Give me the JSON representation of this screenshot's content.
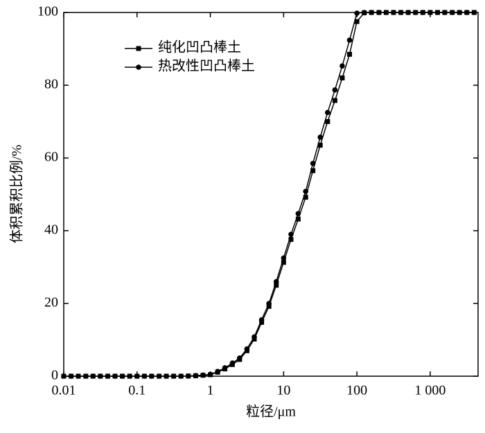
{
  "chart_data": {
    "type": "line",
    "xlabel": "粒径/μm",
    "ylabel": "体积累积比例/%",
    "xscale": "log",
    "xlim": [
      0.01,
      4500
    ],
    "ylim": [
      0,
      100
    ],
    "xticks": [
      0.01,
      0.1,
      1,
      10,
      100,
      {
        "value": 1000,
        "label": "1 000"
      }
    ],
    "yticks": [
      0,
      20,
      40,
      60,
      80,
      100
    ],
    "legend": "upper left",
    "x": [
      0.01,
      0.0126,
      0.0158,
      0.02,
      0.0251,
      0.0316,
      0.0398,
      0.0501,
      0.0631,
      0.0794,
      0.1,
      0.126,
      0.158,
      0.2,
      0.251,
      0.316,
      0.398,
      0.501,
      0.631,
      0.794,
      1,
      1.26,
      1.58,
      2,
      2.51,
      3.16,
      3.98,
      5.01,
      6.31,
      7.94,
      10,
      12.6,
      15.8,
      20,
      25.1,
      31.6,
      39.8,
      50.1,
      63.1,
      79.4,
      100,
      126,
      158,
      200,
      251,
      316,
      398,
      501,
      631,
      794,
      1000,
      1260,
      1580,
      2000,
      2510,
      3160,
      3980
    ],
    "series": [
      {
        "name": "纯化凹凸棒土",
        "color": "#000000",
        "marker": "square",
        "values": [
          0,
          0,
          0,
          0,
          0,
          0,
          0,
          0,
          0,
          0,
          0,
          0,
          0,
          0,
          0,
          0,
          0,
          0.04,
          0.12,
          0.25,
          0.4,
          1.1,
          2.0,
          3.2,
          4.6,
          7.0,
          10.2,
          14.8,
          19.2,
          25,
          31.3,
          37.6,
          43.2,
          49.2,
          56.5,
          63.5,
          70,
          75.8,
          82,
          88.5,
          97.5,
          99.9,
          100,
          100,
          100,
          100,
          100,
          100,
          100,
          100,
          100,
          100,
          100,
          100,
          100,
          100,
          100
        ]
      },
      {
        "name": "热改性凹凸棒土",
        "color": "#000000",
        "marker": "circle",
        "values": [
          0,
          0,
          0,
          0,
          0,
          0,
          0,
          0,
          0,
          0,
          0,
          0,
          0,
          0,
          0,
          0,
          0,
          0.05,
          0.15,
          0.3,
          0.5,
          1.3,
          2.3,
          3.6,
          5.0,
          7.5,
          10.8,
          15.5,
          20,
          26,
          32.5,
          39,
          44.7,
          50.8,
          58.5,
          65.7,
          72.5,
          78.7,
          85.3,
          92.4,
          99.8,
          100,
          100,
          100,
          100,
          100,
          100,
          100,
          100,
          100,
          100,
          100,
          100,
          100,
          100,
          100,
          100
        ]
      }
    ]
  }
}
